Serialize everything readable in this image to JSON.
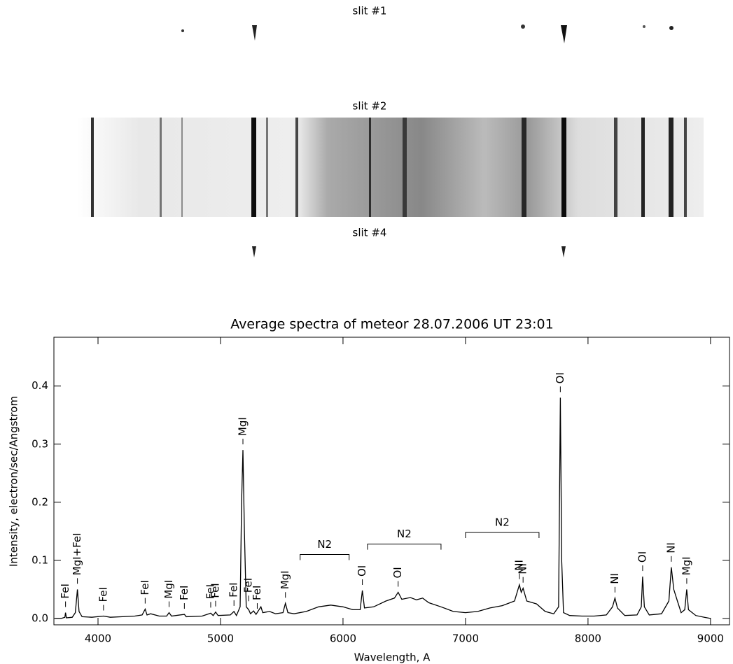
{
  "slits": {
    "labels": [
      "slit #1",
      "slit #2",
      "slit #4"
    ]
  },
  "chart_data": {
    "type": "line",
    "title": "Average spectra of meteor 28.07.2006 UT 23:01",
    "x_label": "Wavelength, A",
    "y_label": "Intensity, electron/sec/Angstrom",
    "xlim": [
      3640,
      9155
    ],
    "ylim": [
      -0.011,
      0.484
    ],
    "xticks": [
      4000,
      5000,
      6000,
      7000,
      8000,
      9000
    ],
    "yticks": [
      {
        "value": 0,
        "label": "0.0"
      },
      0.1,
      0.2,
      0.3,
      0.4
    ],
    "color": "#000000",
    "x": [
      3650,
      3700,
      3730,
      3735,
      3742,
      3790,
      3815,
      3832,
      3845,
      3870,
      3950,
      4045,
      4100,
      4200,
      4300,
      4360,
      4385,
      4400,
      4430,
      4500,
      4560,
      4580,
      4600,
      4705,
      4720,
      4850,
      4920,
      4940,
      4960,
      4980,
      5080,
      5110,
      5130,
      5160,
      5172,
      5183,
      5195,
      5210,
      5230,
      5245,
      5270,
      5290,
      5330,
      5345,
      5400,
      5450,
      5510,
      5530,
      5550,
      5600,
      5700,
      5800,
      5900,
      6000,
      6080,
      6140,
      6158,
      6175,
      6250,
      6350,
      6420,
      6450,
      6480,
      6550,
      6600,
      6650,
      6700,
      6800,
      6900,
      7000,
      7100,
      7200,
      7300,
      7400,
      7440,
      7455,
      7470,
      7500,
      7580,
      7650,
      7720,
      7760,
      7774,
      7785,
      7800,
      7850,
      7950,
      8050,
      8150,
      8200,
      8220,
      8240,
      8300,
      8400,
      8435,
      8446,
      8460,
      8500,
      8600,
      8660,
      8680,
      8700,
      8730,
      8760,
      8790,
      8806,
      8820,
      8880,
      8950,
      9000
    ],
    "values": [
      0.0,
      0.0,
      0.002,
      0.01,
      0.001,
      0.002,
      0.01,
      0.05,
      0.012,
      0.003,
      0.002,
      0.004,
      0.002,
      0.003,
      0.004,
      0.006,
      0.016,
      0.006,
      0.008,
      0.004,
      0.004,
      0.01,
      0.004,
      0.007,
      0.003,
      0.004,
      0.009,
      0.005,
      0.011,
      0.005,
      0.006,
      0.012,
      0.005,
      0.02,
      0.2,
      0.29,
      0.15,
      0.02,
      0.015,
      0.008,
      0.013,
      0.007,
      0.02,
      0.01,
      0.012,
      0.008,
      0.01,
      0.026,
      0.01,
      0.008,
      0.012,
      0.02,
      0.023,
      0.02,
      0.015,
      0.015,
      0.048,
      0.018,
      0.02,
      0.03,
      0.035,
      0.045,
      0.033,
      0.036,
      0.032,
      0.035,
      0.027,
      0.02,
      0.012,
      0.01,
      0.012,
      0.018,
      0.022,
      0.03,
      0.058,
      0.045,
      0.052,
      0.03,
      0.025,
      0.012,
      0.008,
      0.02,
      0.38,
      0.1,
      0.01,
      0.005,
      0.004,
      0.004,
      0.006,
      0.02,
      0.035,
      0.018,
      0.005,
      0.006,
      0.02,
      0.072,
      0.02,
      0.006,
      0.008,
      0.03,
      0.088,
      0.05,
      0.03,
      0.01,
      0.015,
      0.05,
      0.015,
      0.005,
      0.002,
      0.0
    ],
    "annotations": [
      {
        "text": "FeI",
        "x": 3735
      },
      {
        "text": "MgI+FeI",
        "x": 3832
      },
      {
        "text": "FeI",
        "x": 4045
      },
      {
        "text": "FeI",
        "x": 4385
      },
      {
        "text": "MgI",
        "x": 4580
      },
      {
        "text": "FeI",
        "x": 4705
      },
      {
        "text": "FeI",
        "x": 4920
      },
      {
        "text": "FeI",
        "x": 4960
      },
      {
        "text": "FeI",
        "x": 5110
      },
      {
        "text": "MgI",
        "x": 5183
      },
      {
        "text": "FeI",
        "x": 5230
      },
      {
        "text": "FeI",
        "x": 5300
      },
      {
        "text": "MgI",
        "x": 5530
      },
      {
        "text": "OI",
        "x": 6158
      },
      {
        "text": "OI",
        "x": 6450
      },
      {
        "text": "NI",
        "x": 7440
      },
      {
        "text": "NI",
        "x": 7470
      },
      {
        "text": "OI",
        "x": 7774
      },
      {
        "text": "NI",
        "x": 8220
      },
      {
        "text": "OI",
        "x": 8446
      },
      {
        "text": "NI",
        "x": 8680
      },
      {
        "text": "MgI",
        "x": 8806
      }
    ],
    "bands": [
      {
        "text": "N2",
        "range": [
          5650,
          6050
        ]
      },
      {
        "text": "N2",
        "range": [
          6200,
          6800
        ]
      },
      {
        "text": "N2",
        "range": [
          7000,
          7600
        ]
      }
    ]
  }
}
